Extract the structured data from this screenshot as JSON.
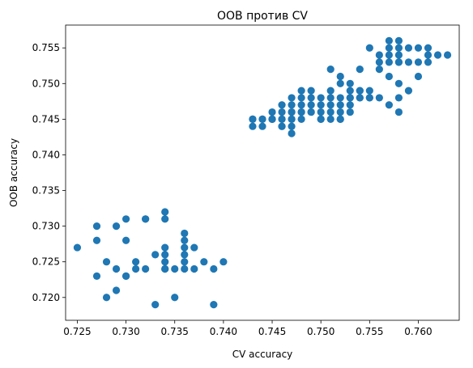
{
  "chart_data": {
    "type": "scatter",
    "title": "OOB против CV",
    "xlabel": "CV accuracy",
    "ylabel": "OOB accuracy",
    "xlim": [
      0.7238,
      0.7642
    ],
    "ylim": [
      0.7168,
      0.7582
    ],
    "grid": false,
    "legend": "none",
    "xticks": [
      0.725,
      0.73,
      0.735,
      0.74,
      0.745,
      0.75,
      0.755,
      0.76
    ],
    "yticks": [
      0.72,
      0.725,
      0.73,
      0.735,
      0.74,
      0.745,
      0.75,
      0.755
    ],
    "xtick_labels": [
      "0.725",
      "0.730",
      "0.735",
      "0.740",
      "0.745",
      "0.750",
      "0.755",
      "0.760"
    ],
    "ytick_labels": [
      "0.720",
      "0.725",
      "0.730",
      "0.735",
      "0.740",
      "0.745",
      "0.750",
      "0.755"
    ],
    "color": "#1f77b4",
    "series": [
      {
        "x": [
          0.725,
          0.727,
          0.727,
          0.727,
          0.728,
          0.728,
          0.729,
          0.729,
          0.729,
          0.73,
          0.73,
          0.73,
          0.73,
          0.731,
          0.731,
          0.732,
          0.732,
          0.732,
          0.733,
          0.733,
          0.734,
          0.734,
          0.734,
          0.734,
          0.734,
          0.734,
          0.734,
          0.735,
          0.735,
          0.736,
          0.736,
          0.736,
          0.736,
          0.736,
          0.736,
          0.737,
          0.737,
          0.738,
          0.739,
          0.739,
          0.74,
          0.743,
          0.743,
          0.743,
          0.744,
          0.744,
          0.744,
          0.745,
          0.745,
          0.745,
          0.745,
          0.746,
          0.746,
          0.746,
          0.746,
          0.746,
          0.746,
          0.747,
          0.747,
          0.747,
          0.747,
          0.747,
          0.747,
          0.747,
          0.747,
          0.748,
          0.748,
          0.748,
          0.748,
          0.748,
          0.748,
          0.749,
          0.749,
          0.749,
          0.749,
          0.749,
          0.75,
          0.75,
          0.75,
          0.75,
          0.75,
          0.751,
          0.751,
          0.751,
          0.751,
          0.751,
          0.751,
          0.752,
          0.752,
          0.752,
          0.752,
          0.752,
          0.752,
          0.752,
          0.753,
          0.753,
          0.753,
          0.753,
          0.753,
          0.753,
          0.754,
          0.754,
          0.754,
          0.754,
          0.754,
          0.755,
          0.755,
          0.755,
          0.755,
          0.756,
          0.756,
          0.756,
          0.756,
          0.757,
          0.757,
          0.757,
          0.757,
          0.757,
          0.757,
          0.758,
          0.758,
          0.758,
          0.758,
          0.758,
          0.758,
          0.758,
          0.758,
          0.759,
          0.759,
          0.759,
          0.76,
          0.76,
          0.76,
          0.761,
          0.761,
          0.761,
          0.762,
          0.763
        ],
        "y": [
          0.727,
          0.73,
          0.728,
          0.723,
          0.725,
          0.72,
          0.73,
          0.724,
          0.721,
          0.731,
          0.728,
          0.723,
          0.723,
          0.725,
          0.724,
          0.731,
          0.731,
          0.724,
          0.726,
          0.719,
          0.732,
          0.731,
          0.727,
          0.726,
          0.725,
          0.724,
          0.724,
          0.724,
          0.72,
          0.729,
          0.728,
          0.727,
          0.726,
          0.725,
          0.724,
          0.727,
          0.724,
          0.725,
          0.724,
          0.719,
          0.725,
          0.745,
          0.745,
          0.744,
          0.745,
          0.745,
          0.744,
          0.746,
          0.745,
          0.745,
          0.745,
          0.747,
          0.746,
          0.745,
          0.745,
          0.744,
          0.744,
          0.748,
          0.747,
          0.746,
          0.746,
          0.745,
          0.745,
          0.744,
          0.743,
          0.749,
          0.748,
          0.747,
          0.746,
          0.746,
          0.745,
          0.749,
          0.748,
          0.747,
          0.746,
          0.746,
          0.748,
          0.747,
          0.746,
          0.745,
          0.745,
          0.752,
          0.749,
          0.748,
          0.747,
          0.746,
          0.745,
          0.751,
          0.75,
          0.748,
          0.747,
          0.746,
          0.745,
          0.745,
          0.75,
          0.749,
          0.748,
          0.748,
          0.747,
          0.746,
          0.752,
          0.749,
          0.749,
          0.748,
          0.748,
          0.755,
          0.749,
          0.748,
          0.748,
          0.754,
          0.753,
          0.752,
          0.748,
          0.756,
          0.755,
          0.754,
          0.753,
          0.751,
          0.747,
          0.756,
          0.755,
          0.754,
          0.753,
          0.753,
          0.75,
          0.748,
          0.746,
          0.755,
          0.753,
          0.749,
          0.755,
          0.753,
          0.751,
          0.755,
          0.754,
          0.753,
          0.754,
          0.754
        ]
      }
    ]
  }
}
